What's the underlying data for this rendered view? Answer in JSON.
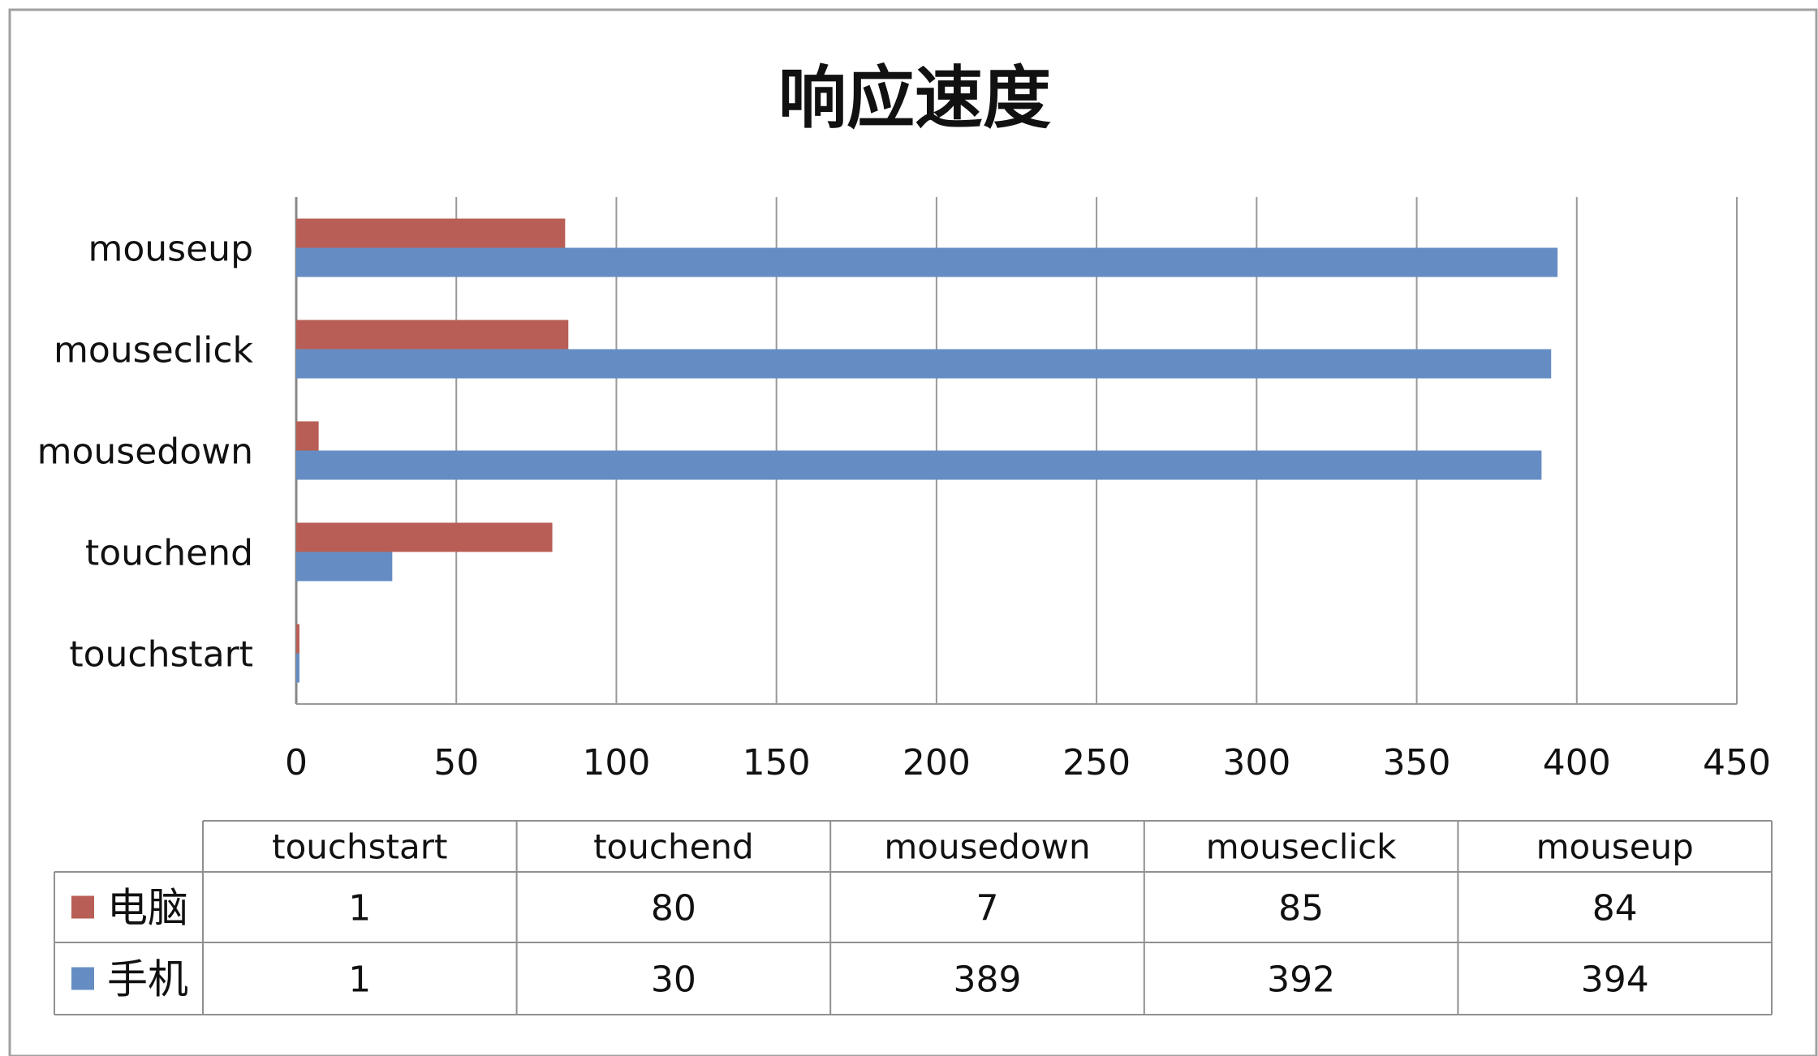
{
  "chart_data": {
    "type": "bar",
    "orientation": "horizontal",
    "title": "响应速度",
    "categories": [
      "touchstart",
      "touchend",
      "mousedown",
      "mouseclick",
      "mouseup"
    ],
    "series": [
      {
        "name": "电脑",
        "color": "#B85E56",
        "values": [
          1,
          80,
          7,
          85,
          84
        ]
      },
      {
        "name": "手机",
        "color": "#658DC4",
        "values": [
          1,
          30,
          389,
          392,
          394
        ]
      }
    ],
    "xlim": [
      0,
      450
    ],
    "xticks": [
      0,
      50,
      100,
      150,
      200,
      250,
      300,
      350,
      400,
      450
    ],
    "grid": "vertical",
    "legend": "data-table"
  },
  "colors": {
    "grid": "#999999",
    "frame": "#999999",
    "text": "#111111"
  }
}
